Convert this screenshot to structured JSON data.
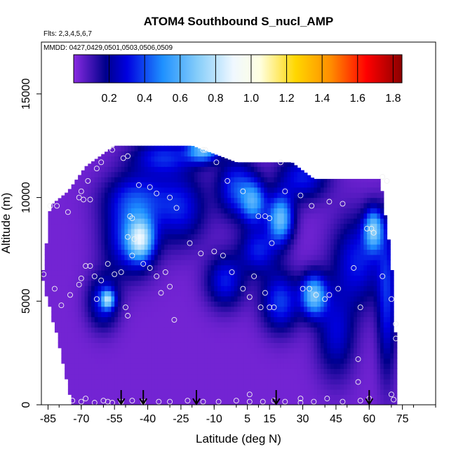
{
  "chart_data": {
    "type": "heatmap",
    "title": "ATOM4 Southbound S_nucl_AMP",
    "subtitle_lines": [
      "Flts: 2,3,4,5,6,7",
      "MMDD: 0427,0429,0501,0503,0506,0509"
    ],
    "xlabel": "Latitude (deg N)",
    "ylabel": "Altitude (m)",
    "xlim": [
      -88,
      90
    ],
    "ylim": [
      0,
      17500
    ],
    "x_ticks": [
      -85,
      -70,
      -55,
      -40,
      -25,
      -10,
      5,
      15,
      30,
      45,
      60,
      75
    ],
    "y_ticks": [
      0,
      5000,
      10000,
      15000
    ],
    "colorbar": {
      "range": [
        0.0,
        1.85
      ],
      "ticks": [
        0.2,
        0.4,
        0.6,
        0.8,
        1.0,
        1.2,
        1.4,
        1.6,
        1.8
      ],
      "stops": [
        {
          "v": 0.0,
          "c": "#8a2be2"
        },
        {
          "v": 0.18,
          "c": "#00008b"
        },
        {
          "v": 0.3,
          "c": "#0000e0"
        },
        {
          "v": 0.5,
          "c": "#1e90ff"
        },
        {
          "v": 0.7,
          "c": "#87cefa"
        },
        {
          "v": 0.9,
          "c": "#f0f8ff"
        },
        {
          "v": 1.05,
          "c": "#ffffe0"
        },
        {
          "v": 1.25,
          "c": "#ffd700"
        },
        {
          "v": 1.45,
          "c": "#ff8c00"
        },
        {
          "v": 1.65,
          "c": "#ff0000"
        },
        {
          "v": 1.85,
          "c": "#8b0000"
        }
      ]
    },
    "coverage": [
      {
        "lat": -87,
        "alt_top": 6500
      },
      {
        "lat": -84,
        "alt_top": 9600
      },
      {
        "lat": -76,
        "alt_top": 10300
      },
      {
        "lat": -68,
        "alt_top": 11500
      },
      {
        "lat": -55,
        "alt_top": 12500
      },
      {
        "lat": -20,
        "alt_top": 12500
      },
      {
        "lat": 0,
        "alt_top": 11700
      },
      {
        "lat": 25,
        "alt_top": 11700
      },
      {
        "lat": 35,
        "alt_top": 10900
      },
      {
        "lat": 65,
        "alt_top": 10900
      },
      {
        "lat": 70,
        "alt_top": 7000
      },
      {
        "lat": 72,
        "alt_top": 3000
      }
    ],
    "bottom_extent": [
      {
        "lat": -87,
        "alt": 6000
      },
      {
        "lat": -80,
        "alt": 3000
      },
      {
        "lat": -74,
        "alt": 0
      },
      {
        "lat": 72,
        "alt": 0
      }
    ],
    "features": [
      {
        "lat": -48,
        "alt": 8000,
        "value": 0.35,
        "sx": 8,
        "sy": 1200
      },
      {
        "lat": -43,
        "alt": 8000,
        "value": 0.55,
        "sx": 4,
        "sy": 700
      },
      {
        "lat": -45,
        "alt": 10000,
        "value": 0.3,
        "sx": 10,
        "sy": 900
      },
      {
        "lat": -33,
        "alt": 12000,
        "value": 0.3,
        "sx": 10,
        "sy": 600
      },
      {
        "lat": -15,
        "alt": 12300,
        "value": 0.55,
        "sx": 5,
        "sy": 400
      },
      {
        "lat": -25,
        "alt": 9500,
        "value": 0.28,
        "sx": 8,
        "sy": 1200
      },
      {
        "lat": 0,
        "alt": 10500,
        "value": 0.35,
        "sx": 6,
        "sy": 1000
      },
      {
        "lat": 8,
        "alt": 9800,
        "value": 0.45,
        "sx": 4,
        "sy": 700
      },
      {
        "lat": 20,
        "alt": 9000,
        "value": 0.6,
        "sx": 4,
        "sy": 800
      },
      {
        "lat": 30,
        "alt": 11000,
        "value": 0.3,
        "sx": 8,
        "sy": 800
      },
      {
        "lat": 62,
        "alt": 8500,
        "value": 0.55,
        "sx": 3,
        "sy": 700
      },
      {
        "lat": 55,
        "alt": 7000,
        "value": 0.3,
        "sx": 8,
        "sy": 1500
      },
      {
        "lat": 35,
        "alt": 5300,
        "value": 0.6,
        "sx": 4,
        "sy": 700
      },
      {
        "lat": 20,
        "alt": 5000,
        "value": 0.35,
        "sx": 6,
        "sy": 1000
      },
      {
        "lat": -5,
        "alt": 6000,
        "value": 0.3,
        "sx": 6,
        "sy": 900
      },
      {
        "lat": -60,
        "alt": 5000,
        "value": 0.3,
        "sx": 5,
        "sy": 900
      },
      {
        "lat": -58,
        "alt": 5100,
        "value": 0.5,
        "sx": 2,
        "sy": 300
      },
      {
        "lat": 45,
        "alt": 3500,
        "value": 0.25,
        "sx": 6,
        "sy": 1500
      },
      {
        "lat": 68,
        "alt": 5000,
        "value": 0.3,
        "sx": 3,
        "sy": 2500
      },
      {
        "lat": 10,
        "alt": 7500,
        "value": 0.3,
        "sx": 6,
        "sy": 800
      }
    ],
    "sample_points": [
      {
        "lat": -87,
        "alt": 6300
      },
      {
        "lat": -84,
        "alt": 9600
      },
      {
        "lat": -81,
        "alt": 9600
      },
      {
        "lat": -76,
        "alt": 9300
      },
      {
        "lat": -71,
        "alt": 10000
      },
      {
        "lat": -70,
        "alt": 10300
      },
      {
        "lat": -69,
        "alt": 9900
      },
      {
        "lat": -67,
        "alt": 10800
      },
      {
        "lat": -66,
        "alt": 9900
      },
      {
        "lat": -63,
        "alt": 11400
      },
      {
        "lat": -61,
        "alt": 11700
      },
      {
        "lat": -56,
        "alt": 12300
      },
      {
        "lat": -51,
        "alt": 11900
      },
      {
        "lat": -49,
        "alt": 12000
      },
      {
        "lat": -48,
        "alt": 9100
      },
      {
        "lat": -47,
        "alt": 9000
      },
      {
        "lat": -49,
        "alt": 8100
      },
      {
        "lat": -46,
        "alt": 8000
      },
      {
        "lat": -44,
        "alt": 10600
      },
      {
        "lat": -39,
        "alt": 10500
      },
      {
        "lat": -36,
        "alt": 10200
      },
      {
        "lat": -30,
        "alt": 10000
      },
      {
        "lat": -27,
        "alt": 9500
      },
      {
        "lat": -21,
        "alt": 7800
      },
      {
        "lat": -9,
        "alt": 11700
      },
      {
        "lat": -4,
        "alt": 10800
      },
      {
        "lat": 3,
        "alt": 10300
      },
      {
        "lat": 10,
        "alt": 9100
      },
      {
        "lat": 13,
        "alt": 9100
      },
      {
        "lat": 15,
        "alt": 9000
      },
      {
        "lat": 16,
        "alt": 7800
      },
      {
        "lat": 20,
        "alt": 11700
      },
      {
        "lat": 22,
        "alt": 10300
      },
      {
        "lat": 29,
        "alt": 10100
      },
      {
        "lat": 34,
        "alt": 9600
      },
      {
        "lat": 42,
        "alt": 9800
      },
      {
        "lat": 48,
        "alt": 9700
      },
      {
        "lat": 59,
        "alt": 8500
      },
      {
        "lat": 61,
        "alt": 8500
      },
      {
        "lat": 62,
        "alt": 8300
      },
      {
        "lat": 66,
        "alt": 11000
      },
      {
        "lat": 68,
        "alt": 10800
      },
      {
        "lat": -14,
        "alt": 12300
      },
      {
        "lat": -15,
        "alt": 12300
      },
      {
        "lat": -82,
        "alt": 5600
      },
      {
        "lat": -79,
        "alt": 4800
      },
      {
        "lat": -75,
        "alt": 5300
      },
      {
        "lat": -71,
        "alt": 5800
      },
      {
        "lat": -70,
        "alt": 6100
      },
      {
        "lat": -68,
        "alt": 6700
      },
      {
        "lat": -66,
        "alt": 6700
      },
      {
        "lat": -64,
        "alt": 6200
      },
      {
        "lat": -63,
        "alt": 5100
      },
      {
        "lat": -61,
        "alt": 6000
      },
      {
        "lat": -58,
        "alt": 6800
      },
      {
        "lat": -55,
        "alt": 6300
      },
      {
        "lat": -52,
        "alt": 6400
      },
      {
        "lat": -50,
        "alt": 4700
      },
      {
        "lat": -49,
        "alt": 4300
      },
      {
        "lat": -47,
        "alt": 7200
      },
      {
        "lat": -42,
        "alt": 6800
      },
      {
        "lat": -39,
        "alt": 6600
      },
      {
        "lat": -36,
        "alt": 6200
      },
      {
        "lat": -34,
        "alt": 5400
      },
      {
        "lat": -32,
        "alt": 6400
      },
      {
        "lat": -30,
        "alt": 5700
      },
      {
        "lat": -28,
        "alt": 4100
      },
      {
        "lat": -16,
        "alt": 7300
      },
      {
        "lat": -10,
        "alt": 7400
      },
      {
        "lat": -6,
        "alt": 7200
      },
      {
        "lat": -2,
        "alt": 6400
      },
      {
        "lat": 3,
        "alt": 5600
      },
      {
        "lat": 6,
        "alt": 5200
      },
      {
        "lat": 8,
        "alt": 6200
      },
      {
        "lat": 11,
        "alt": 4700
      },
      {
        "lat": 13,
        "alt": 5400
      },
      {
        "lat": 15,
        "alt": 4700
      },
      {
        "lat": 17,
        "alt": 4700
      },
      {
        "lat": 30,
        "alt": 5600
      },
      {
        "lat": 33,
        "alt": 5600
      },
      {
        "lat": 36,
        "alt": 5300
      },
      {
        "lat": 40,
        "alt": 5100
      },
      {
        "lat": 42,
        "alt": 5300
      },
      {
        "lat": 46,
        "alt": 5600
      },
      {
        "lat": 53,
        "alt": 6600
      },
      {
        "lat": 56,
        "alt": 4700
      },
      {
        "lat": 66,
        "alt": 6200
      },
      {
        "lat": 70,
        "alt": 5100
      },
      {
        "lat": 72,
        "alt": 3900
      },
      {
        "lat": 72,
        "alt": 3200
      },
      {
        "lat": 55,
        "alt": 2200
      },
      {
        "lat": 55,
        "alt": 1100
      },
      {
        "lat": -74,
        "alt": 200
      },
      {
        "lat": -70,
        "alt": 150
      },
      {
        "lat": -68,
        "alt": 300
      },
      {
        "lat": -64,
        "alt": 100
      },
      {
        "lat": -60,
        "alt": 200
      },
      {
        "lat": -58,
        "alt": 150
      },
      {
        "lat": -56,
        "alt": 100
      },
      {
        "lat": -52,
        "alt": 150
      },
      {
        "lat": -47,
        "alt": 200
      },
      {
        "lat": -42,
        "alt": 150
      },
      {
        "lat": -35,
        "alt": 150
      },
      {
        "lat": -30,
        "alt": 150
      },
      {
        "lat": -22,
        "alt": 200
      },
      {
        "lat": -15,
        "alt": 150
      },
      {
        "lat": -8,
        "alt": 150
      },
      {
        "lat": 0,
        "alt": 200
      },
      {
        "lat": 6,
        "alt": 500
      },
      {
        "lat": 6,
        "alt": 150
      },
      {
        "lat": 12,
        "alt": 150
      },
      {
        "lat": 17,
        "alt": 200
      },
      {
        "lat": 22,
        "alt": 150
      },
      {
        "lat": 29,
        "alt": 300
      },
      {
        "lat": 29,
        "alt": 100
      },
      {
        "lat": 35,
        "alt": 150
      },
      {
        "lat": 41,
        "alt": 300
      },
      {
        "lat": 48,
        "alt": 150
      },
      {
        "lat": 56,
        "alt": 200
      },
      {
        "lat": 60,
        "alt": 300
      },
      {
        "lat": 70,
        "alt": 500
      },
      {
        "lat": 71,
        "alt": 250
      }
    ],
    "arrows_lat": [
      -52,
      -42,
      -18,
      18,
      60
    ]
  }
}
